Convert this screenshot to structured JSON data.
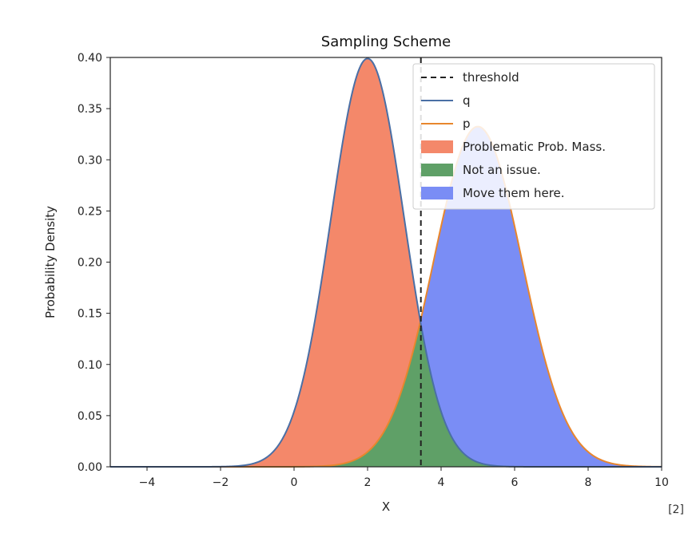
{
  "chart_data": {
    "type": "area",
    "title": "Sampling Scheme",
    "xlabel": "X",
    "ylabel": "Probability Density",
    "xlim": [
      -5,
      10
    ],
    "ylim": [
      0,
      0.4
    ],
    "x_ticks": [
      -4,
      -2,
      0,
      2,
      4,
      6,
      8,
      10
    ],
    "x_tick_labels": [
      "−4",
      "−2",
      "0",
      "2",
      "4",
      "6",
      "8",
      "10"
    ],
    "y_ticks": [
      0,
      0.05,
      0.1,
      0.15,
      0.2,
      0.25,
      0.3,
      0.35,
      0.4
    ],
    "y_tick_labels": [
      "0.00",
      "0.05",
      "0.10",
      "0.15",
      "0.20",
      "0.25",
      "0.30",
      "0.35",
      "0.40"
    ],
    "grid": false,
    "legend_position": "top-right",
    "threshold": 3.45,
    "series": [
      {
        "name": "q",
        "kind": "normal-curve",
        "mean": 2,
        "std": 1,
        "color": "#4a6fa5"
      },
      {
        "name": "p",
        "kind": "normal-curve",
        "mean": 5,
        "std": 1.2,
        "color": "#e8862d"
      }
    ],
    "regions": [
      {
        "name": "Problematic Prob. Mass.",
        "color": "#f4886a",
        "description_range": [
          -5,
          3.45
        ]
      },
      {
        "name": "Not an issue.",
        "color": "#5fa067",
        "description_range": [
          -5,
          10
        ]
      },
      {
        "name": "Move them here.",
        "color": "#7a8df5",
        "description_range": [
          3.45,
          10
        ]
      }
    ],
    "legend": [
      {
        "label": "threshold",
        "style": "dashed-line",
        "color": "#222222"
      },
      {
        "label": "q",
        "style": "line",
        "color": "#4a6fa5"
      },
      {
        "label": "p",
        "style": "line",
        "color": "#e8862d"
      },
      {
        "label": "Problematic Prob. Mass.",
        "style": "patch",
        "color": "#f4886a"
      },
      {
        "label": "Not an issue.",
        "style": "patch",
        "color": "#5fa067"
      },
      {
        "label": "Move them here.",
        "style": "patch",
        "color": "#7a8df5"
      }
    ]
  },
  "reference_label": "[2]"
}
